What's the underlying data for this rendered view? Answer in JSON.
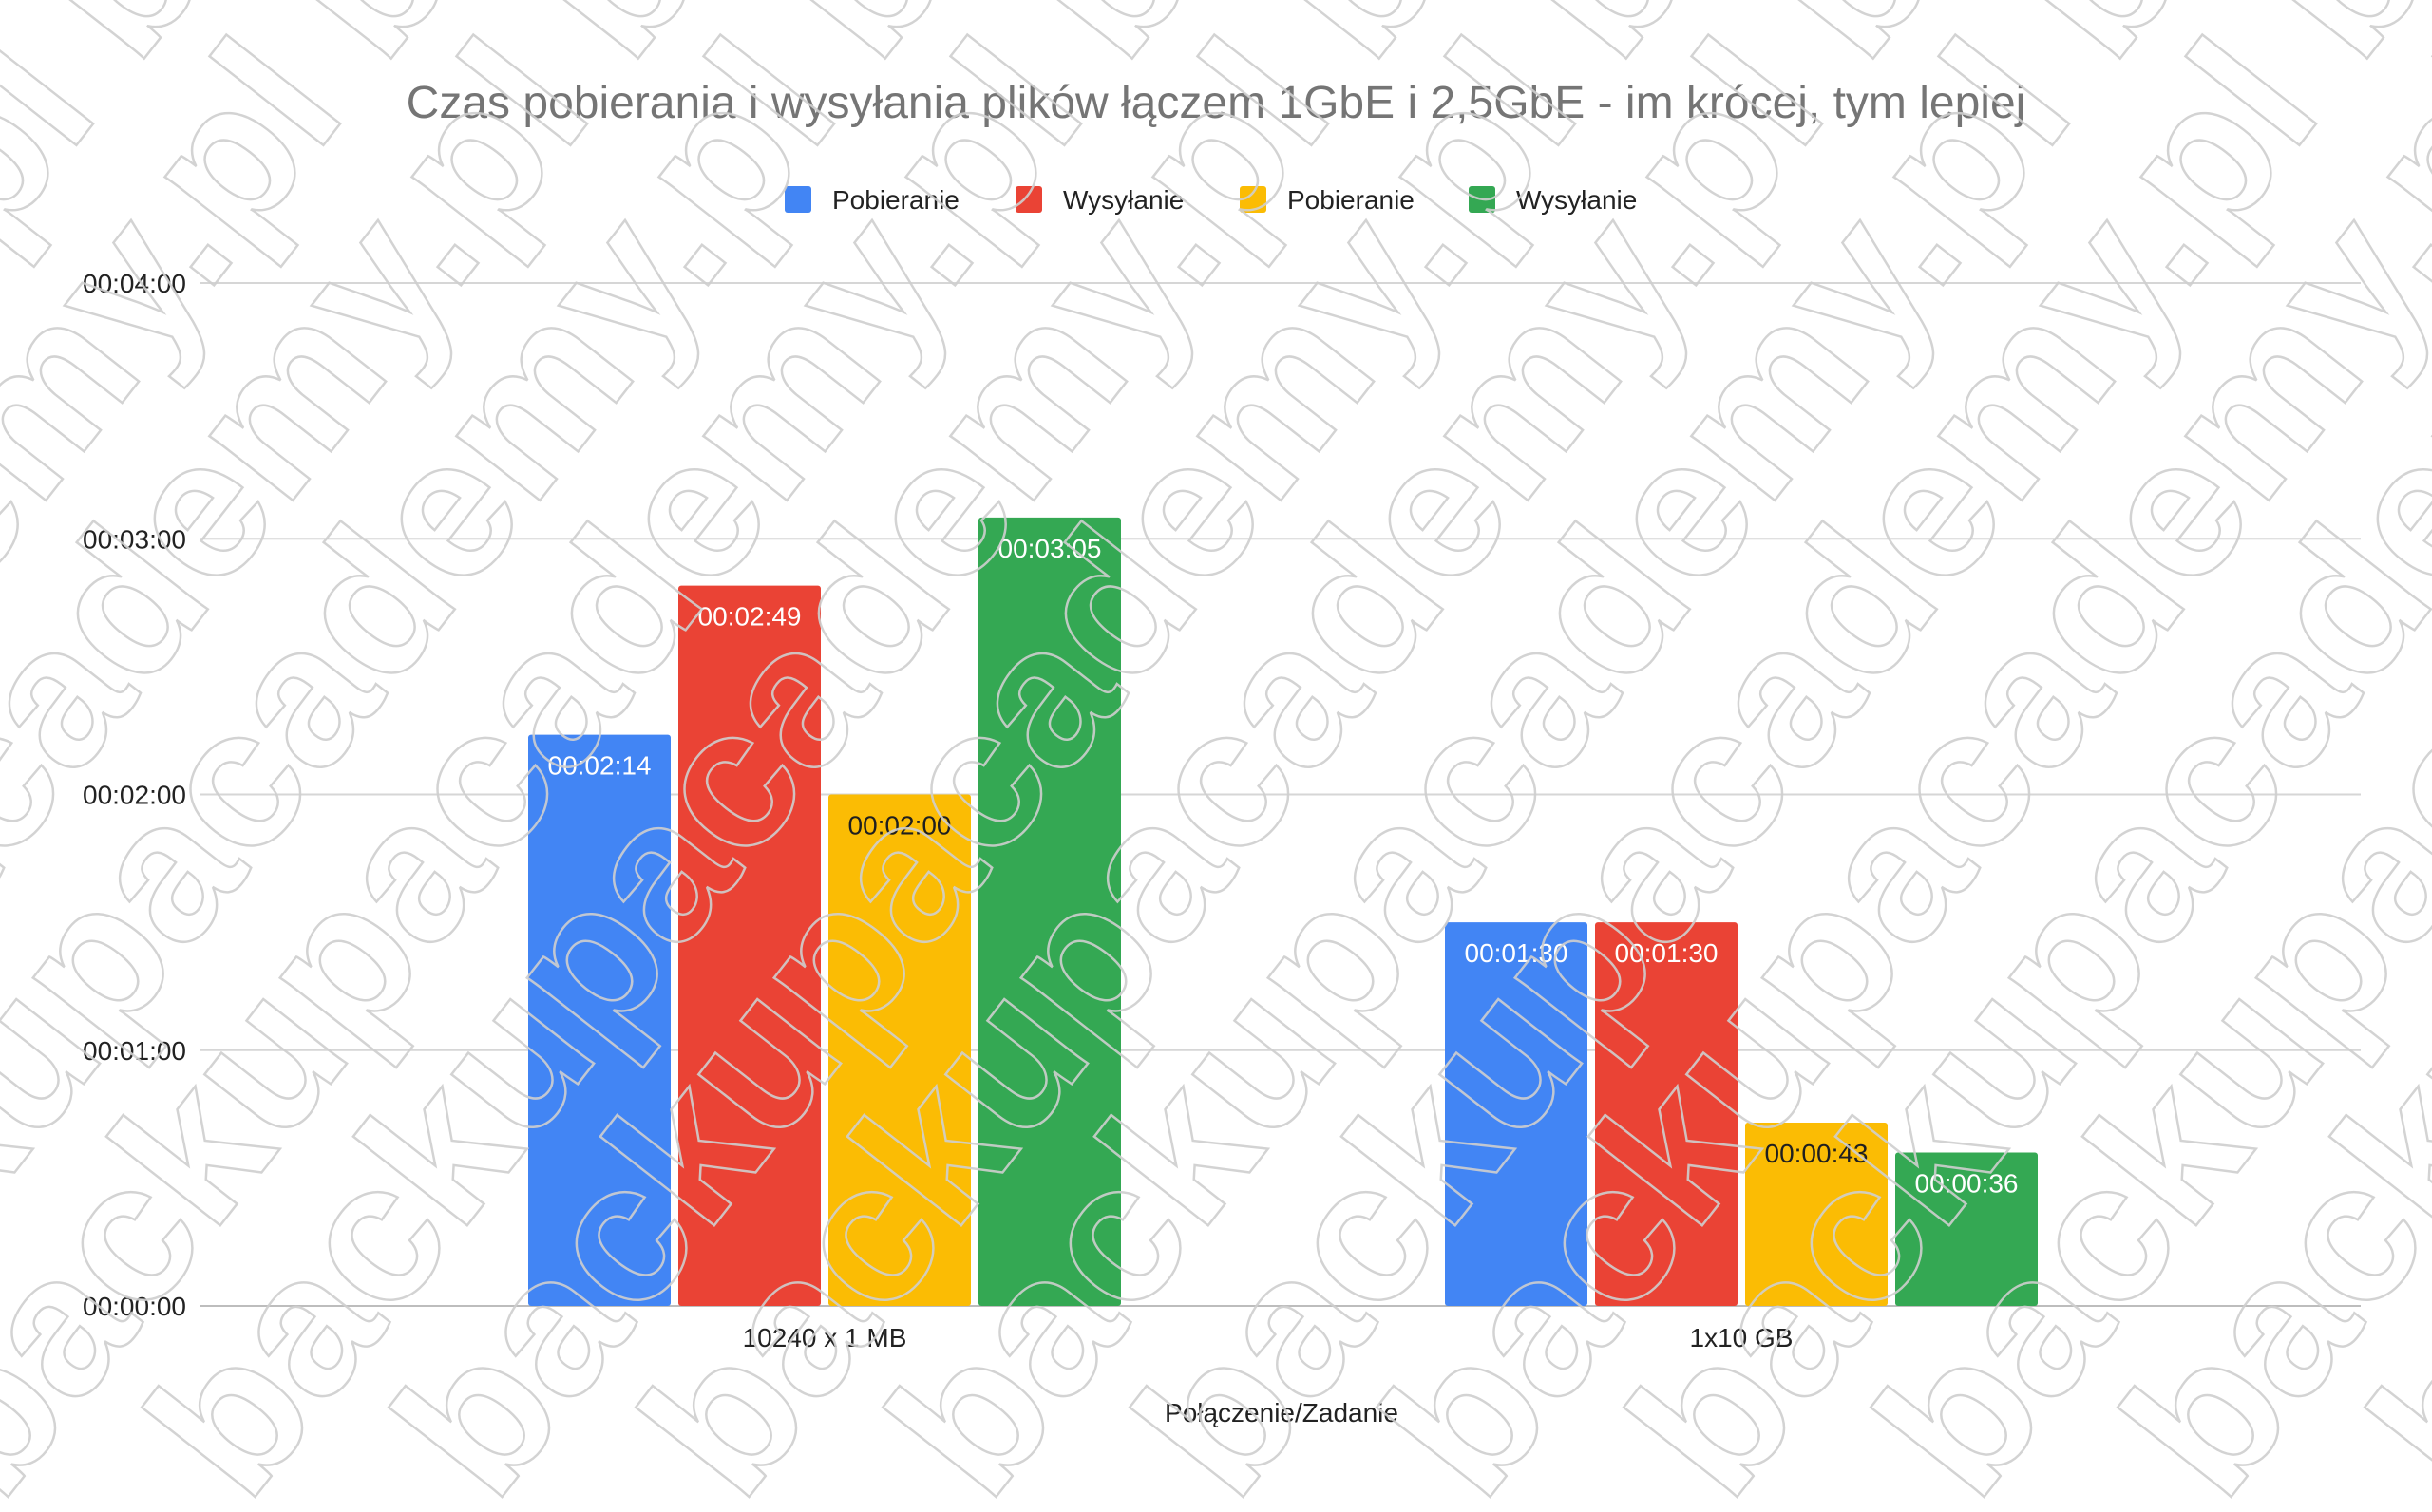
{
  "chart_data": {
    "type": "bar",
    "title": "Czas pobierania i wysyłania plików łączem 1GbE i 2,5GbE - im krócej, tym lepiej",
    "xlabel": "Połączenie/Zadanie",
    "ylabel": "",
    "categories": [
      "10240 x 1 MB",
      "1x10 GB"
    ],
    "series": [
      {
        "name": "Pobieranie",
        "color": "#4285F4",
        "label_color": "#ffffff",
        "values": [
          134,
          90
        ],
        "labels": [
          "00:02:14",
          "00:01:30"
        ]
      },
      {
        "name": "Wysyłanie",
        "color": "#EA4335",
        "label_color": "#ffffff",
        "values": [
          169,
          90
        ],
        "labels": [
          "00:02:49",
          "00:01:30"
        ]
      },
      {
        "name": "Pobieranie",
        "color": "#FBBC04",
        "label_color": "#1f1f1f",
        "values": [
          120,
          43
        ],
        "labels": [
          "00:02:00",
          "00:00:43"
        ]
      },
      {
        "name": "Wysyłanie",
        "color": "#34A853",
        "label_color": "#ffffff",
        "values": [
          185,
          36
        ],
        "labels": [
          "00:03:05",
          "00:00:36"
        ]
      }
    ],
    "value_unit": "seconds",
    "ylim": [
      0,
      240
    ],
    "yticks": [
      0,
      60,
      120,
      180,
      240
    ],
    "ytick_labels": [
      "00:00:00",
      "00:01:00",
      "00:02:00",
      "00:03:00",
      "00:04:00"
    ],
    "grid": true,
    "legend_position": "top-center"
  },
  "watermark": {
    "text": "backupacademy.pl"
  }
}
